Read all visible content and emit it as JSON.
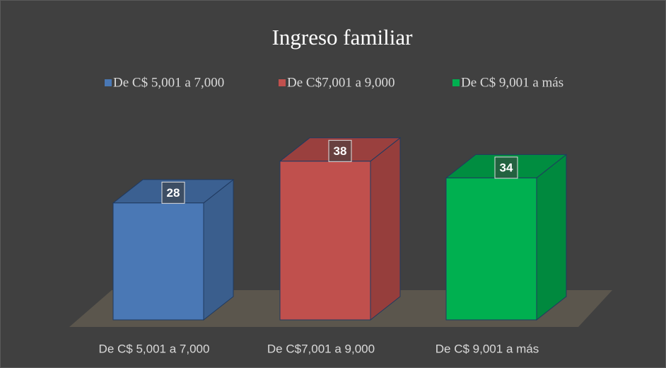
{
  "chart_data": {
    "type": "bar",
    "title": "Ingreso familiar",
    "categories": [
      "De C$ 5,001 a 7,000",
      "De C$7,001 a 9,000",
      "De C$ 9,001 a más"
    ],
    "values": [
      28,
      38,
      34
    ],
    "colors": [
      "#4a78b5",
      "#c0504d",
      "#00b050"
    ],
    "ylim": [
      0,
      40
    ],
    "legend": "top"
  }
}
